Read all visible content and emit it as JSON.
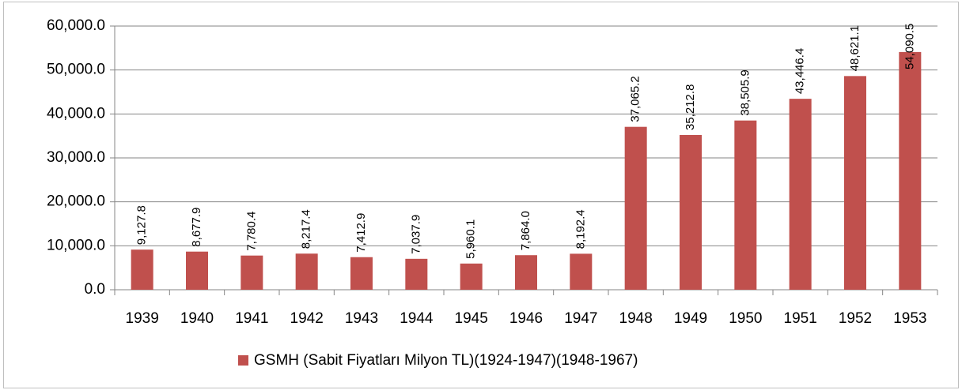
{
  "chart_data": {
    "type": "bar",
    "categories": [
      "1939",
      "1940",
      "1941",
      "1942",
      "1943",
      "1944",
      "1945",
      "1946",
      "1947",
      "1948",
      "1949",
      "1950",
      "1951",
      "1952",
      "1953"
    ],
    "series": [
      {
        "name": "GSMH (Sabit Fiyatları Milyon TL)(1924-1947)(1948-1967)",
        "color": "#c0504d",
        "values": [
          9127.8,
          8677.9,
          7780.4,
          8217.4,
          7412.9,
          7037.9,
          5960.1,
          7864.0,
          8192.4,
          37065.2,
          35212.8,
          38505.9,
          43446.4,
          48621.1,
          54090.5
        ],
        "value_labels": [
          "9,127.8",
          "8,677.9",
          "7,780.4",
          "8,217.4",
          "7,412.9",
          "7,037.9",
          "5,960.1",
          "7,864.0",
          "8,192.4",
          "37,065.2",
          "35,212.8",
          "38,505.9",
          "43,446.4",
          "48,621.1",
          "54,090.5"
        ]
      }
    ],
    "ylim": [
      0,
      60000
    ],
    "yticks": [
      {
        "value": 0,
        "label": "0.0"
      },
      {
        "value": 10000,
        "label": "10,000.0"
      },
      {
        "value": 20000,
        "label": "20,000.0"
      },
      {
        "value": 30000,
        "label": "30,000.0"
      },
      {
        "value": 40000,
        "label": "40,000.0"
      },
      {
        "value": 50000,
        "label": "50,000.0"
      },
      {
        "value": 60000,
        "label": "60,000.0"
      }
    ],
    "grid": true,
    "legend": "bottom"
  }
}
